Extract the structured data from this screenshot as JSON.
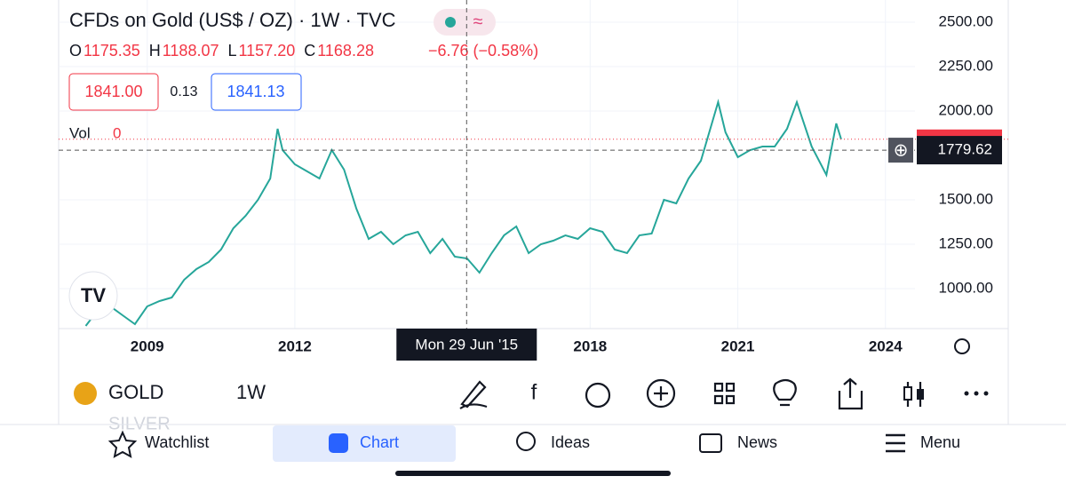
{
  "header": {
    "title": "CFDs on Gold (US$ / OZ) · 1W · TVC",
    "ohlc": [
      {
        "key": "O",
        "value": "1175.35"
      },
      {
        "key": "H",
        "value": "1188.07"
      },
      {
        "key": "L",
        "value": "1157.20"
      },
      {
        "key": "C",
        "value": "1168.28"
      }
    ],
    "change": "−6.76 (−0.58%)",
    "bid": "1841.00",
    "spread": "0.13",
    "ask": "1841.13",
    "vol_label": "Vol",
    "vol_value": "0"
  },
  "chart_data": {
    "type": "line",
    "x": [
      2007.75,
      2008.0,
      2008.25,
      2008.5,
      2008.75,
      2009.0,
      2009.25,
      2009.5,
      2009.75,
      2010.0,
      2010.25,
      2010.5,
      2010.75,
      2011.0,
      2011.25,
      2011.5,
      2011.65,
      2011.75,
      2012.0,
      2012.25,
      2012.5,
      2012.75,
      2013.0,
      2013.25,
      2013.5,
      2013.75,
      2014.0,
      2014.25,
      2014.5,
      2014.75,
      2015.0,
      2015.25,
      2015.5,
      2015.75,
      2016.0,
      2016.25,
      2016.5,
      2016.75,
      2017.0,
      2017.25,
      2017.5,
      2017.75,
      2018.0,
      2018.25,
      2018.5,
      2018.75,
      2019.0,
      2019.25,
      2019.5,
      2019.75,
      2020.0,
      2020.25,
      2020.6,
      2020.75,
      2021.0,
      2021.25,
      2021.5,
      2021.75,
      2022.0,
      2022.2,
      2022.5,
      2022.8,
      2023.0,
      2023.1
    ],
    "series": [
      {
        "color": "#26a69a",
        "values": [
          790,
          880,
          900,
          850,
          800,
          900,
          930,
          950,
          1050,
          1110,
          1150,
          1220,
          1340,
          1410,
          1500,
          1620,
          1900,
          1780,
          1700,
          1660,
          1620,
          1780,
          1670,
          1450,
          1280,
          1320,
          1250,
          1300,
          1320,
          1200,
          1280,
          1180,
          1170,
          1090,
          1200,
          1300,
          1350,
          1200,
          1250,
          1270,
          1300,
          1280,
          1340,
          1320,
          1220,
          1200,
          1300,
          1310,
          1500,
          1480,
          1620,
          1720,
          2050,
          1880,
          1740,
          1780,
          1800,
          1800,
          1900,
          2050,
          1800,
          1640,
          1930,
          1841
        ]
      }
    ],
    "xlim": [
      2007.2,
      2024.6
    ],
    "xticks": [
      2009,
      2012,
      2018,
      2021,
      2024
    ],
    "ylim": [
      775,
      2625
    ],
    "yticks": [
      {
        "value": 1000,
        "label": "1000.00"
      },
      {
        "value": 1250,
        "label": "1250.00"
      },
      {
        "value": 1500,
        "label": "1500.00"
      },
      {
        "value": 2000,
        "label": "2000.00"
      },
      {
        "value": 2250,
        "label": "2250.00"
      },
      {
        "value": 2500,
        "label": "2500.00"
      }
    ],
    "last_price": 1841,
    "crosshair_x": 2015.49,
    "crosshair_x_label": "Mon 29 Jun '15",
    "crosshair_y": {
      "value": 1779.62,
      "label": "1779.62"
    }
  },
  "toolbar": {
    "list_below": "SILVER",
    "symbol": "GOLD",
    "interval": "1W"
  },
  "nav": [
    "Watchlist",
    "Chart",
    "Ideas",
    "News",
    "Menu"
  ]
}
